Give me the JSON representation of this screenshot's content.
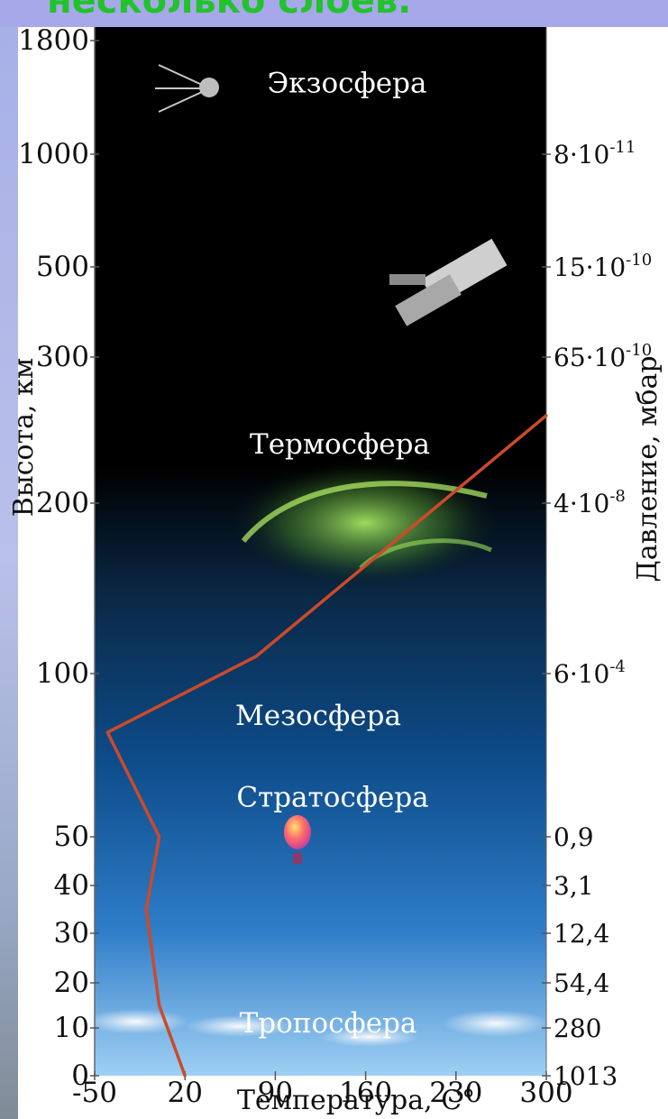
{
  "header": {
    "cut_text": "несколько слоёв."
  },
  "chart_data": {
    "type": "line",
    "title": "",
    "xlabel": "Температура, С°",
    "ylabel": "Высота, км",
    "ylabel_right": "Давление, мбар",
    "x_ticks": [
      -50,
      20,
      90,
      160,
      230,
      300
    ],
    "x_tick_labels": [
      "-50",
      "20",
      "90",
      "160",
      "230",
      "300"
    ],
    "xlim": [
      -50,
      300
    ],
    "y_ticks": [
      {
        "km": 0,
        "label": "0"
      },
      {
        "km": 10,
        "label": "10"
      },
      {
        "km": 20,
        "label": "20"
      },
      {
        "km": 30,
        "label": "30"
      },
      {
        "km": 40,
        "label": "40"
      },
      {
        "km": 50,
        "label": "50"
      },
      {
        "km": 100,
        "label": "100"
      },
      {
        "km": 200,
        "label": "200"
      },
      {
        "km": 300,
        "label": "300"
      },
      {
        "km": 500,
        "label": "500"
      },
      {
        "km": 1000,
        "label": "1000"
      },
      {
        "km": 1800,
        "label": "1800"
      }
    ],
    "pressure_ticks": [
      {
        "km": 0,
        "label": "1013"
      },
      {
        "km": 10,
        "label": "280"
      },
      {
        "km": 20,
        "label": "54,4"
      },
      {
        "km": 30,
        "label": "12,4"
      },
      {
        "km": 40,
        "label": "3,1"
      },
      {
        "km": 50,
        "label": "0,9"
      },
      {
        "km": 100,
        "label": "6·10",
        "exp": "-4"
      },
      {
        "km": 200,
        "label": "4·10",
        "exp": "-8"
      },
      {
        "km": 300,
        "label": "65·10",
        "exp": "-10"
      },
      {
        "km": 500,
        "label": "15·10",
        "exp": "-10"
      },
      {
        "km": 1000,
        "label": "8·10",
        "exp": "-11"
      }
    ],
    "layers": [
      {
        "name": "Экзосфера",
        "km": 1500
      },
      {
        "name": "Термосфера",
        "km": 240
      },
      {
        "name": "Мезосфера",
        "km": 87
      },
      {
        "name": "Стратосфера",
        "km": 62
      },
      {
        "name": "Тропосфера",
        "km": 11
      }
    ],
    "series": [
      {
        "name": "",
        "color": "#cc4a2a",
        "points": [
          {
            "t": 20,
            "km": 0
          },
          {
            "t": 0,
            "km": 15
          },
          {
            "t": -10,
            "km": 35
          },
          {
            "t": 0,
            "km": 50
          },
          {
            "t": -40,
            "km": 82
          },
          {
            "t": 75,
            "km": 110
          },
          {
            "t": 300,
            "km": 260
          }
        ]
      }
    ]
  }
}
